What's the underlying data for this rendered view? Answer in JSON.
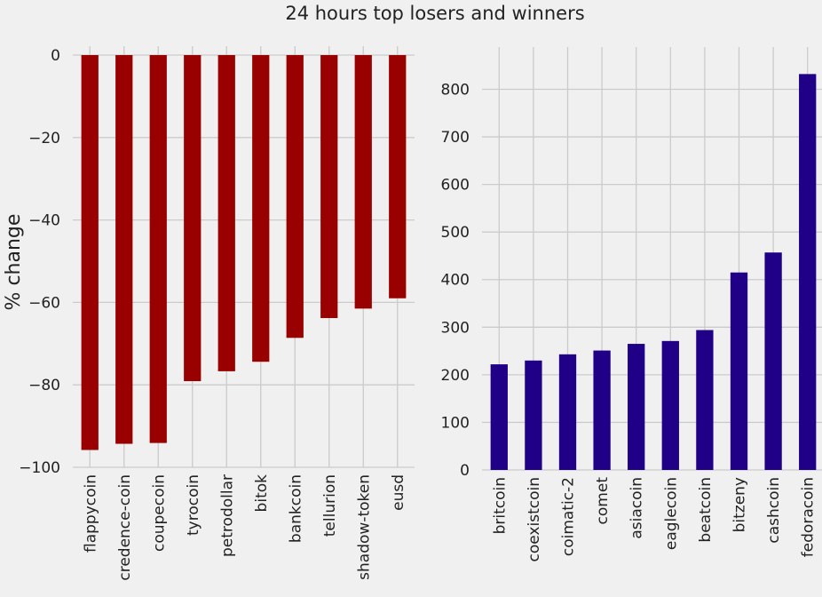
{
  "title": "24 hours top losers and winners",
  "colors": {
    "background": "#f0f0f0",
    "grid": "#cbcbcb",
    "losers": "#990000",
    "winners": "#1f0087"
  },
  "chart_data": [
    {
      "type": "bar",
      "name": "losers",
      "ylabel": "% change",
      "xlabel": "",
      "ylim": [
        -100,
        0
      ],
      "yticks": [
        0,
        -20,
        -40,
        -60,
        -80,
        -100
      ],
      "ytick_labels": [
        "0",
        "−20",
        "−40",
        "−60",
        "−80",
        "−100"
      ],
      "grid": true,
      "color": "#990000",
      "categories": [
        "flappycoin",
        "credence-coin",
        "coupecoin",
        "tyrocoin",
        "petrodollar",
        "bitok",
        "bankcoin",
        "tellurion",
        "shadow-token",
        "eusd"
      ],
      "values": [
        -95.8,
        -94.3,
        -94.1,
        -79.1,
        -76.7,
        -74.4,
        -68.6,
        -63.8,
        -61.5,
        -59.0
      ]
    },
    {
      "type": "bar",
      "name": "winners",
      "ylabel": "",
      "xlabel": "",
      "ylim": [
        0,
        870
      ],
      "yticks": [
        0,
        100,
        200,
        300,
        400,
        500,
        600,
        700,
        800
      ],
      "ytick_labels": [
        "0",
        "100",
        "200",
        "300",
        "400",
        "500",
        "600",
        "700",
        "800"
      ],
      "grid": true,
      "color": "#1f0087",
      "categories": [
        "britcoin",
        "coexistcoin",
        "coimatic-2",
        "comet",
        "asiacoin",
        "eaglecoin",
        "beatcoin",
        "bitzeny",
        "cashcoin",
        "fedoracoin"
      ],
      "values": [
        222,
        230,
        243,
        251,
        265,
        271,
        294,
        415,
        457,
        832
      ]
    }
  ]
}
